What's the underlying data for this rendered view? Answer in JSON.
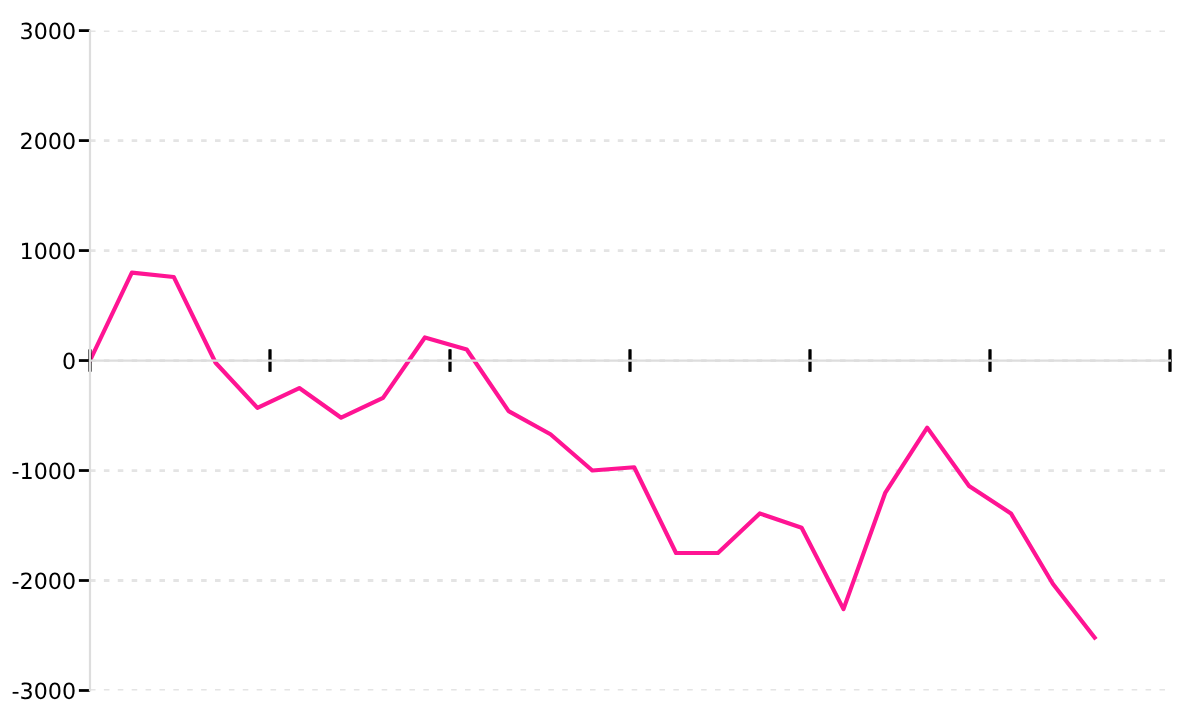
{
  "chart_data": {
    "type": "line",
    "categories": [
      null,
      null,
      null,
      null,
      null,
      null,
      null,
      null,
      null,
      null,
      null,
      null,
      null,
      null,
      null,
      null,
      null,
      null,
      null,
      null,
      null,
      null,
      null,
      null,
      null
    ],
    "series": [
      {
        "color": "#ff1493",
        "values": [
          0,
          800,
          760,
          -20,
          -430,
          -250,
          -520,
          -340,
          210,
          100,
          -460,
          -670,
          -1000,
          -970,
          -1750,
          -1750,
          -1390,
          -1520,
          -2260,
          -1200,
          -610,
          -1140,
          -1390,
          -2030,
          -2520
        ]
      }
    ],
    "ylim": [
      -3000,
      3000
    ],
    "yticks": [
      -3000,
      -2000,
      -1000,
      0,
      1000,
      2000,
      3000
    ],
    "grid": "y",
    "tick_labels": "y",
    "line_style": "solid",
    "marker": "none"
  }
}
